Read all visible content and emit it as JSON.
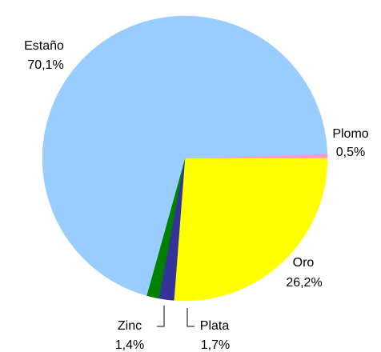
{
  "chart_data": {
    "type": "pie",
    "categories": [
      "Plomo",
      "Oro",
      "Plata",
      "Zinc",
      "Estaño"
    ],
    "values": [
      0.5,
      26.2,
      1.7,
      1.4,
      70.1
    ],
    "value_labels": [
      "0,5%",
      "26,2%",
      "1,7%",
      "1,4%",
      "70,1%"
    ],
    "colors": [
      "#ff99cc",
      "#ffff00",
      "#333399",
      "#008000",
      "#99ccff"
    ]
  }
}
